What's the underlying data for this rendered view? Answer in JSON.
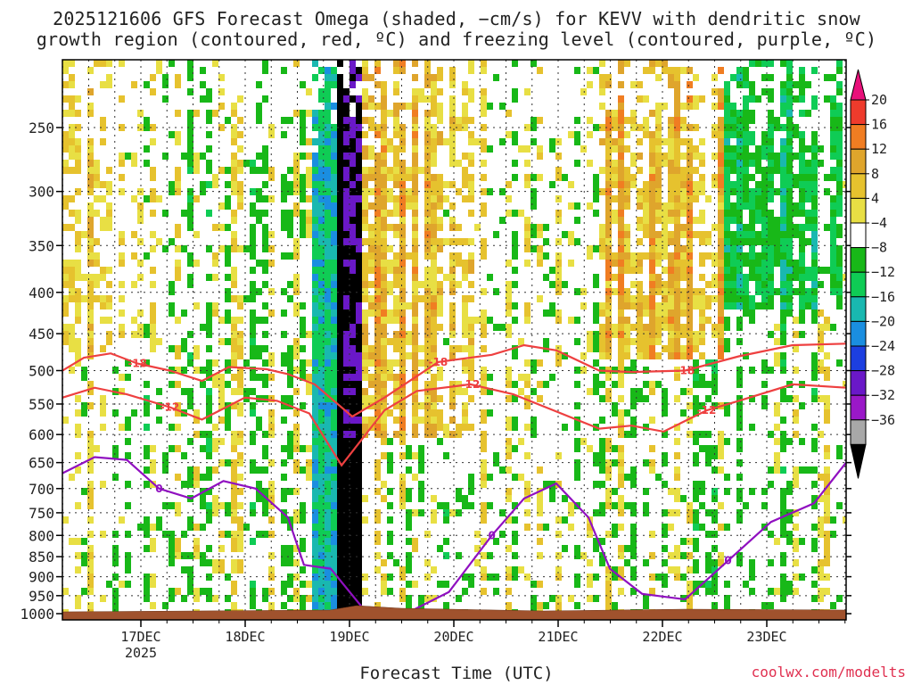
{
  "title_line1": "2025121606 GFS Forecast Omega (shaded, −cm/s) for KEVV with dendritic snow",
  "title_line2": "growth region (contoured, red, ºC) and freezing level (contoured, purple, ºC)",
  "xlabel": "Forecast Time (UTC)",
  "credit": "coolwx.com/modelts",
  "chart_data": {
    "type": "heatmap",
    "pressure_levels": [
      "250",
      "300",
      "350",
      "400",
      "450",
      "500",
      "550",
      "600",
      "650",
      "700",
      "750",
      "800",
      "850",
      "900",
      "950",
      "1000"
    ],
    "date_ticks": [
      "17DEC",
      "18DEC",
      "19DEC",
      "20DEC",
      "21DEC",
      "22DEC",
      "23DEC"
    ],
    "year_label": "2025",
    "colorbar_labels": [
      "20",
      "16",
      "12",
      "8",
      "4",
      "−4",
      "−8",
      "−12",
      "−16",
      "−20",
      "−24",
      "−28",
      "−32",
      "−36"
    ],
    "colorbar_colors": [
      "#e8107a",
      "#ee3b2c",
      "#f07d22",
      "#dfa52c",
      "#e6c22e",
      "#e8df44",
      "#ffffff",
      "#18b818",
      "#0fcc55",
      "#19b8b0",
      "#1a8ee0",
      "#1c3fe0",
      "#6a18c8",
      "#9a18c8",
      "#a8a8a8",
      "#000000"
    ],
    "series": [
      {
        "name": "-18",
        "color": "#ee4040",
        "x": [
          0,
          0.2,
          0.45,
          0.7,
          1.0,
          1.3,
          1.55,
          1.9,
          2.1,
          2.35,
          2.7,
          3.0,
          3.5,
          4.0,
          4.3,
          4.6,
          5.0,
          5.3,
          5.8,
          6.3,
          6.8,
          7.3
        ],
        "y": [
          500,
          482,
          476,
          490,
          500,
          515,
          495,
          498,
          505,
          520,
          570,
          540,
          488,
          478,
          465,
          472,
          500,
          502,
          500,
          480,
          465,
          463
        ]
      },
      {
        "name": "-12",
        "color": "#ee4040",
        "x": [
          0,
          0.3,
          0.6,
          1.0,
          1.3,
          1.7,
          2.0,
          2.3,
          2.6,
          3.0,
          3.3,
          3.8,
          4.2,
          4.5,
          5.0,
          5.3,
          5.6,
          6.0,
          6.3,
          6.8,
          7.3
        ],
        "y": [
          540,
          525,
          535,
          555,
          575,
          540,
          545,
          565,
          655,
          560,
          530,
          520,
          535,
          555,
          590,
          585,
          595,
          560,
          545,
          520,
          525
        ]
      },
      {
        "name": "0",
        "color": "#9010c0",
        "x": [
          0,
          0.3,
          0.6,
          0.9,
          1.2,
          1.5,
          1.8,
          2.1,
          2.25,
          2.5,
          2.8,
          3.2,
          3.6,
          4.0,
          4.3,
          4.6,
          4.9,
          5.1,
          5.4,
          5.8,
          6.2,
          6.6,
          7.0,
          7.3
        ],
        "y": [
          670,
          640,
          645,
          700,
          720,
          685,
          700,
          760,
          870,
          880,
          985,
          1000,
          940,
          800,
          720,
          690,
          760,
          880,
          945,
          960,
          860,
          770,
          730,
          650
        ]
      }
    ],
    "ylim": [
      1000,
      200
    ],
    "surface_color": "#a0522d"
  }
}
